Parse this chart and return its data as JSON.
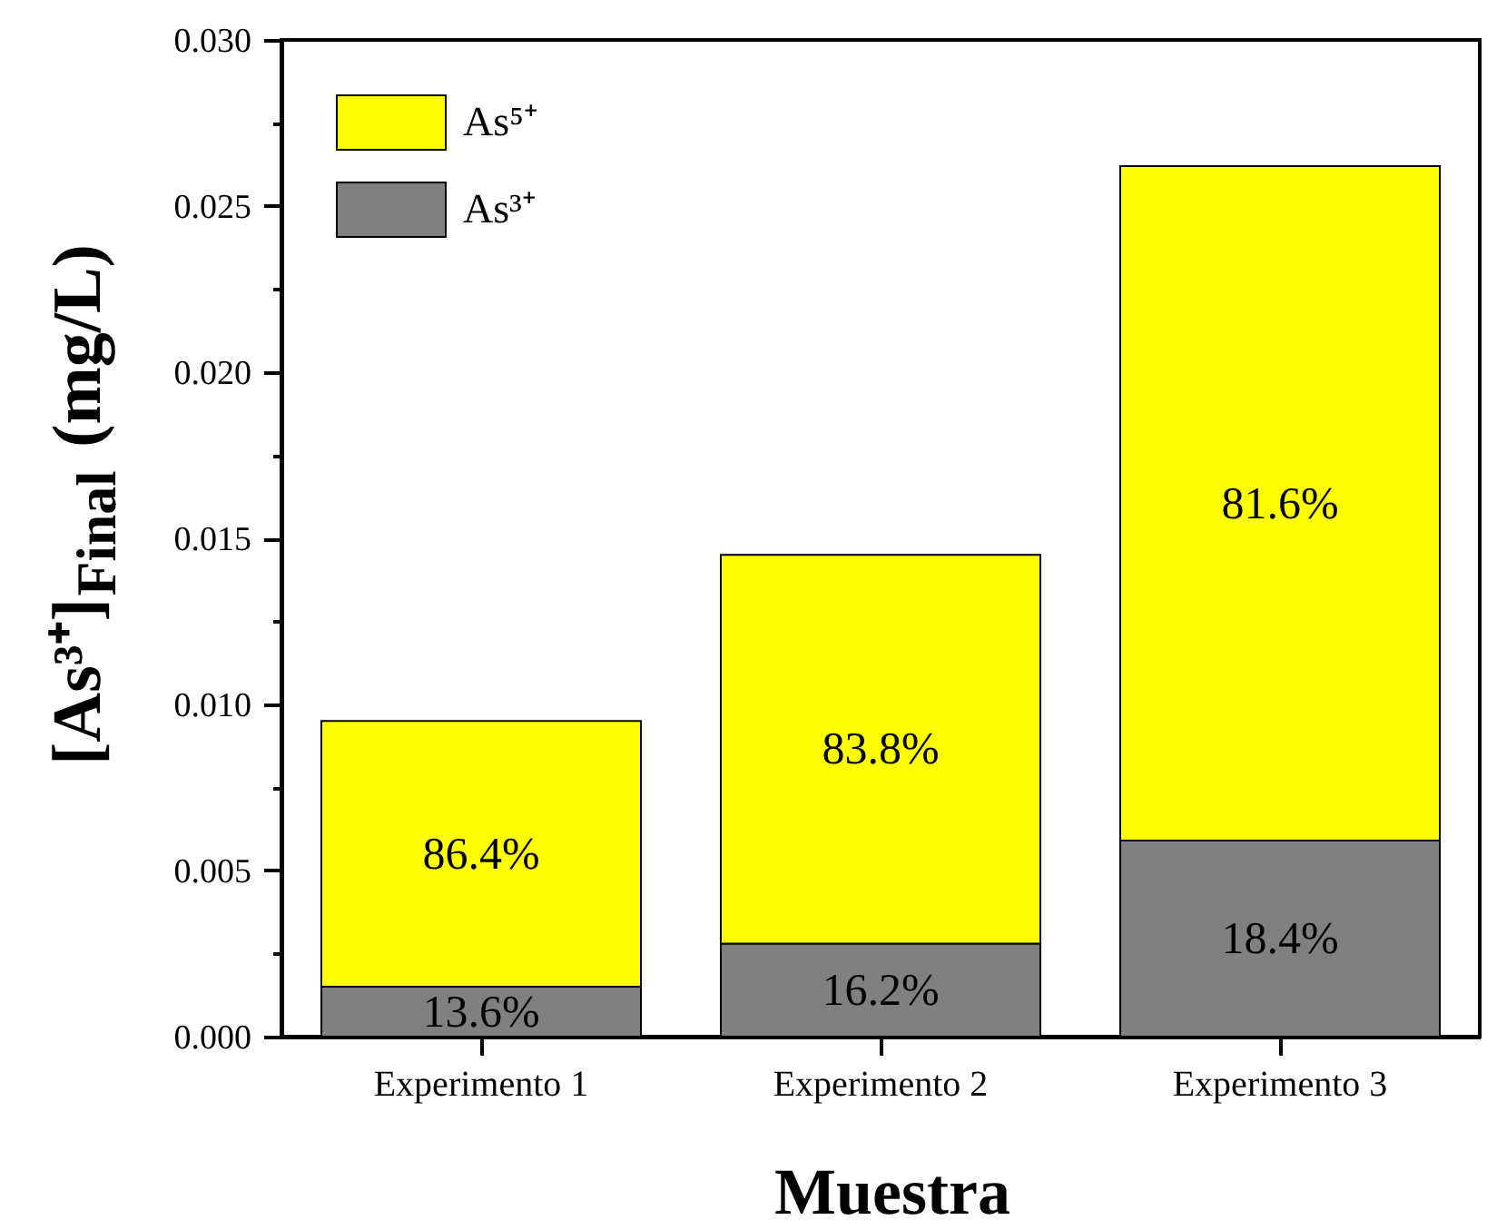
{
  "chart_data": {
    "type": "bar",
    "stacked": true,
    "xlabel": "Muestra",
    "ylabel": "[As³⁺]$_{Final}$ (mg/L)",
    "categories": [
      "Experimento 1",
      "Experimento 2",
      "Experimento 3"
    ],
    "series": [
      {
        "name": "As³⁺",
        "color": "#808080",
        "values": [
          0.0015,
          0.0028,
          0.0059
        ]
      },
      {
        "name": "As⁵⁺",
        "color": "#ffff00",
        "values": [
          0.008,
          0.0117,
          0.0203
        ]
      }
    ],
    "annotations": [
      "13.6%",
      "16.2%",
      "18.4%",
      "86.4%",
      "83.8%",
      "81.6%"
    ],
    "ylim": [
      0,
      0.03
    ],
    "yticks": [
      {
        "value": 0,
        "label": "0.000"
      },
      {
        "value": 0.0025,
        "label": null
      },
      {
        "value": 0.005,
        "label": "0.005"
      },
      {
        "value": 0.0075,
        "label": null
      },
      {
        "value": 0.01,
        "label": "0.010"
      },
      {
        "value": 0.0125,
        "label": null
      },
      {
        "value": 0.015,
        "label": "0.015"
      },
      {
        "value": 0.0175,
        "label": null
      },
      {
        "value": 0.02,
        "label": "0.020"
      },
      {
        "value": 0.0225,
        "label": null
      },
      {
        "value": 0.025,
        "label": "0.025"
      },
      {
        "value": 0.0275,
        "label": null
      },
      {
        "value": 0.03,
        "label": "0.030"
      }
    ],
    "legend": "top left"
  }
}
